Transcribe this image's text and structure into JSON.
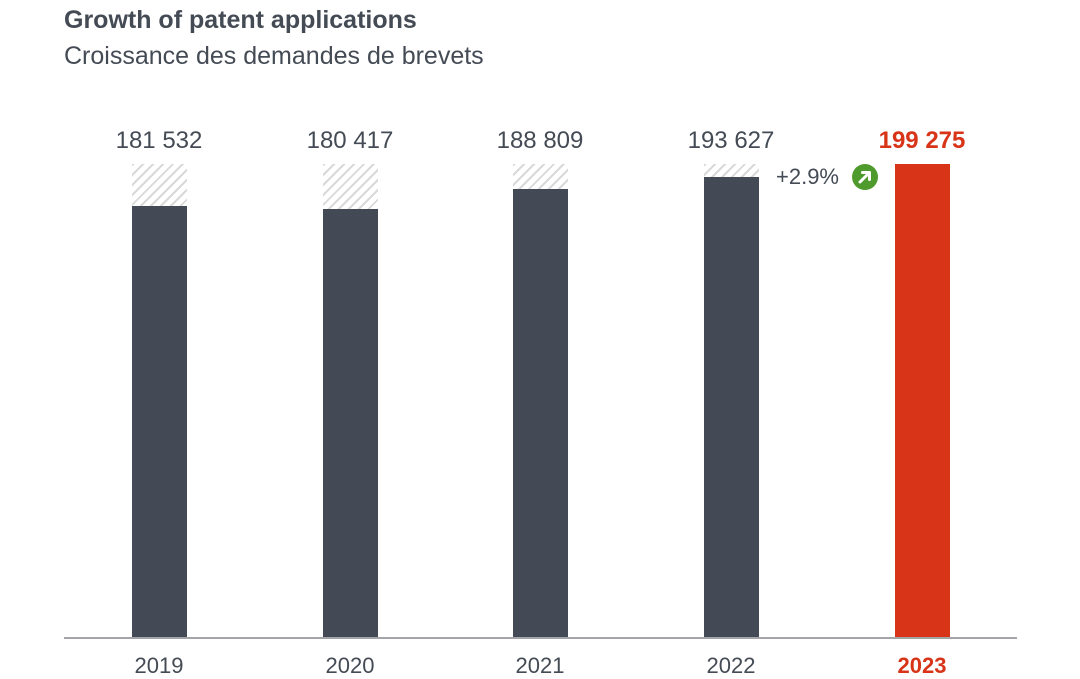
{
  "header": {
    "title": "Growth of patent applications",
    "subtitle": "Croissance des demandes de brevets"
  },
  "colors": {
    "bar_default": "#434a56",
    "bar_highlight": "#d83418",
    "hatch": "#d9d9d9",
    "growth_icon": "#4f9a2d",
    "axis": "#a3a5a8",
    "text": "#444b55"
  },
  "bars": [
    {
      "year": "2019",
      "label": "181 532",
      "value": 181532
    },
    {
      "year": "2020",
      "label": "180 417",
      "value": 180417
    },
    {
      "year": "2021",
      "label": "188 809",
      "value": 188809
    },
    {
      "year": "2022",
      "label": "193 627",
      "value": 193627
    },
    {
      "year": "2023",
      "label": "199 275",
      "value": 199275,
      "highlight": true
    }
  ],
  "growth": {
    "label": "+2.9%",
    "icon": "arrow-up-right-circle-icon"
  },
  "chart_data": {
    "type": "bar",
    "title": "Growth of patent applications",
    "subtitle": "Croissance des demandes de brevets",
    "categories": [
      "2019",
      "2020",
      "2021",
      "2022",
      "2023"
    ],
    "values": [
      181532,
      180417,
      188809,
      193627,
      199275
    ],
    "data_labels": [
      "181 532",
      "180 417",
      "188 809",
      "193 627",
      "199 275"
    ],
    "highlighted_category": "2023",
    "reference_value": 199275,
    "annotations": [
      {
        "text": "+2.9%",
        "between": [
          "2022",
          "2023"
        ],
        "icon": "green up-right arrow"
      }
    ],
    "xlabel": "",
    "ylabel": "",
    "ylim": [
      0,
      199275
    ],
    "grid": false,
    "legend": null
  }
}
